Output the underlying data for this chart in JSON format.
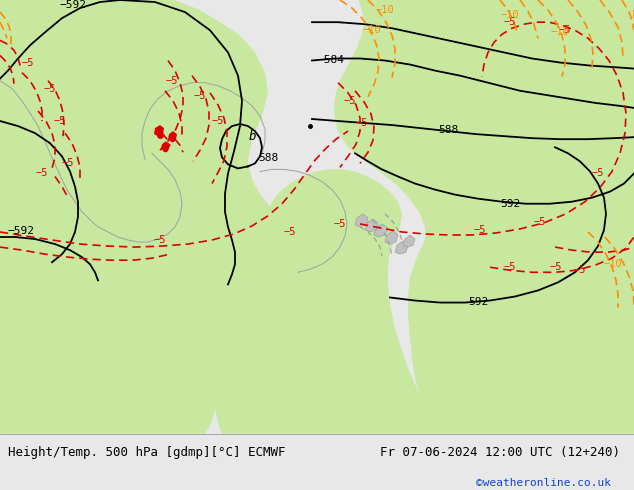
{
  "title_left": "Height/Temp. 500 hPa [gdmp][°C] ECMWF",
  "title_right": "Fr 07-06-2024 12:00 UTC (12+240)",
  "credit": "©weatheronline.co.uk",
  "map_bg": "#e0e0e0",
  "green_color": "#c8e8a0",
  "black_color": "#000000",
  "red_color": "#dd0000",
  "orange_color": "#ff8c00",
  "gray_land_color": "#c0c0c0",
  "gray_line_color": "#a0a0a0",
  "credit_color": "#1144cc",
  "bottom_bg": "#e8e8e8",
  "fig_width": 6.34,
  "fig_height": 4.9
}
